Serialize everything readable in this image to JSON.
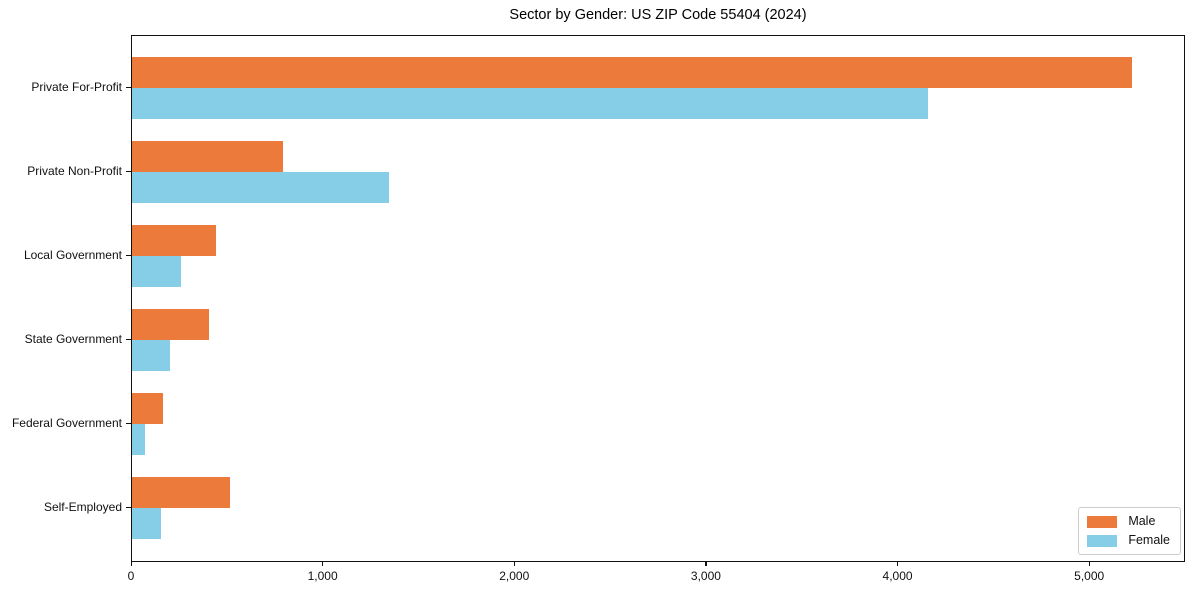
{
  "title": "Sector by Gender: US ZIP Code 55404 (2024)",
  "chart_data": {
    "type": "bar",
    "orientation": "horizontal",
    "title": "Sector by Gender: US ZIP Code 55404 (2024)",
    "categories": [
      "Private For-Profit",
      "Private Non-Profit",
      "Local Government",
      "State Government",
      "Federal Government",
      "Self-Employed"
    ],
    "series": [
      {
        "name": "Male",
        "color": "#EC7A3B",
        "values": [
          5230,
          790,
          440,
          405,
          160,
          512
        ]
      },
      {
        "name": "Female",
        "color": "#86CDE7",
        "values": [
          4160,
          1345,
          255,
          200,
          68,
          154
        ]
      }
    ],
    "xlabel": "",
    "ylabel": "",
    "xlim": [
      0,
      5500
    ],
    "x_tick_values": [
      0,
      1000,
      2000,
      3000,
      4000,
      5000
    ],
    "x_tick_labels": [
      "0",
      "1,000",
      "2,000",
      "3,000",
      "4,000",
      "5,000"
    ],
    "grid": false,
    "legend_position": "lower right",
    "frame_color": "#111111",
    "background_color": "#ffffff"
  }
}
